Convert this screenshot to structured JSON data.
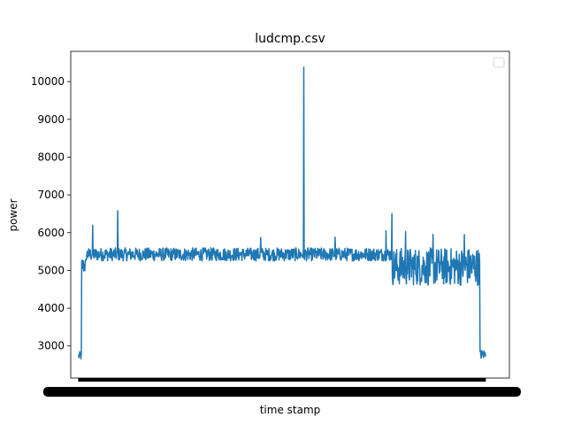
{
  "chart_data": {
    "type": "line",
    "title": "ludcmp.csv",
    "xlabel": "time stamp",
    "ylabel": "power",
    "ylim": [
      2150,
      10800
    ],
    "xlim": [
      -20,
      1100
    ],
    "n_points": 1040,
    "yticks": [
      3000,
      4000,
      5000,
      6000,
      7000,
      8000,
      9000,
      10000
    ],
    "grid": false,
    "legend": {
      "position": "top-right",
      "entries": []
    },
    "series": [
      {
        "name": "",
        "color": "#1f77b4",
        "segments": [
          {
            "from": 0,
            "to": 8,
            "low": 2620,
            "high": 2850
          },
          {
            "from": 8,
            "to": 20,
            "low": 4900,
            "high": 5350
          },
          {
            "from": 20,
            "to": 800,
            "low": 5250,
            "high": 5600
          },
          {
            "from": 800,
            "to": 1025,
            "low": 4600,
            "high": 5600
          },
          {
            "from": 1025,
            "to": 1040,
            "low": 2650,
            "high": 2900
          }
        ],
        "spikes": [
          {
            "x": 36,
            "y": 6200
          },
          {
            "x": 100,
            "y": 6580
          },
          {
            "x": 465,
            "y": 5870
          },
          {
            "x": 575,
            "y": 10380
          },
          {
            "x": 655,
            "y": 5880
          },
          {
            "x": 785,
            "y": 6050
          },
          {
            "x": 800,
            "y": 6500
          },
          {
            "x": 835,
            "y": 6030
          },
          {
            "x": 905,
            "y": 5950
          },
          {
            "x": 985,
            "y": 5950
          }
        ]
      }
    ]
  }
}
